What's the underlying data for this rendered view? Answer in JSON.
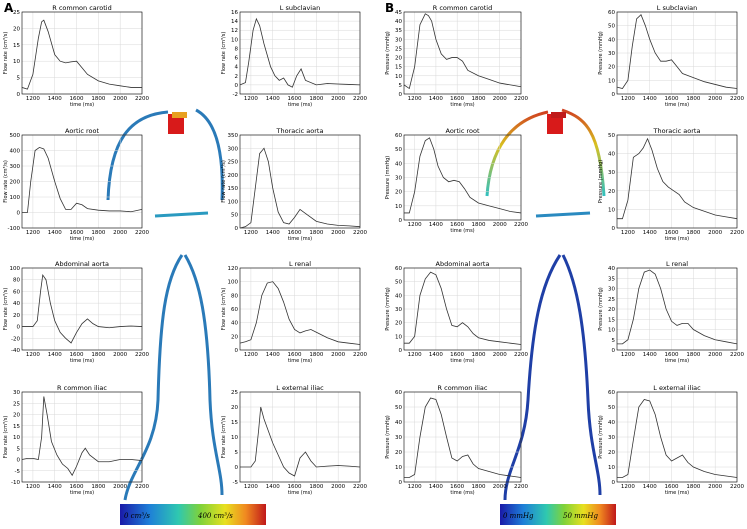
{
  "panels": {
    "A": {
      "letter": "A",
      "xlabel": "time (ms)",
      "ylabel": "Flow rate (cm³/s)",
      "colorbar": {
        "low": "0 cm³/s",
        "high": "400 cm³/s"
      }
    },
    "B": {
      "letter": "B",
      "xlabel": "time (ms)",
      "ylabel": "Pressure (mmHg)",
      "colorbar": {
        "low": "0 mmHg",
        "high": "50 mmHg"
      }
    }
  },
  "colors": {
    "line": "#333333",
    "grid": "#d8d8d8",
    "vessel_flow": "#2a7ab8",
    "vessel_pressure": "#1f3fa6"
  },
  "chart_data": [
    {
      "type": "line",
      "panel": "A",
      "title": "R common carotid",
      "ylabel": "Flow rate (cm³/s)",
      "xlabel": "time (ms)",
      "xlim": [
        1100,
        2200
      ],
      "ylim": [
        0,
        25
      ],
      "xticks": [
        1200,
        1400,
        1600,
        1800,
        2000,
        2200
      ],
      "yticks": [
        0,
        5,
        10,
        15,
        20,
        25
      ],
      "x": [
        1100,
        1150,
        1200,
        1250,
        1280,
        1300,
        1340,
        1400,
        1450,
        1500,
        1550,
        1600,
        1650,
        1700,
        1800,
        1900,
        2000,
        2100,
        2200
      ],
      "y": [
        2,
        1.5,
        6,
        17,
        22,
        22.5,
        19,
        12,
        10,
        9.5,
        9.8,
        10,
        8,
        6,
        4,
        3,
        2.5,
        2,
        2
      ]
    },
    {
      "type": "line",
      "panel": "A",
      "title": "L subclavian",
      "ylabel": "Flow rate (cm³/s)",
      "xlabel": "time (ms)",
      "xlim": [
        1100,
        2200
      ],
      "ylim": [
        -2,
        16
      ],
      "xticks": [
        1200,
        1400,
        1600,
        1800,
        2000,
        2200
      ],
      "yticks": [
        -2,
        0,
        2,
        4,
        6,
        8,
        10,
        12,
        14,
        16
      ],
      "x": [
        1100,
        1150,
        1180,
        1220,
        1250,
        1280,
        1320,
        1380,
        1420,
        1460,
        1500,
        1540,
        1580,
        1620,
        1660,
        1700,
        1800,
        1900,
        2000,
        2100,
        2200
      ],
      "y": [
        0,
        0.5,
        5,
        12,
        14.5,
        13,
        9,
        4,
        2,
        1,
        1.5,
        0,
        -0.5,
        2,
        3.5,
        1,
        0,
        0.3,
        0.2,
        0.1,
        0
      ]
    },
    {
      "type": "line",
      "panel": "A",
      "title": "Aortic root",
      "ylabel": "Flow rate (cm³/s)",
      "xlabel": "time (ms)",
      "xlim": [
        1100,
        2200
      ],
      "ylim": [
        -100,
        500
      ],
      "xticks": [
        1200,
        1400,
        1600,
        1800,
        2000,
        2200
      ],
      "yticks": [
        -100,
        0,
        100,
        200,
        300,
        400,
        500
      ],
      "x": [
        1100,
        1150,
        1180,
        1220,
        1260,
        1300,
        1340,
        1400,
        1450,
        1500,
        1550,
        1600,
        1650,
        1700,
        1800,
        1900,
        2000,
        2100,
        2200
      ],
      "y": [
        0,
        0,
        200,
        400,
        420,
        410,
        350,
        200,
        90,
        20,
        20,
        60,
        50,
        25,
        15,
        10,
        10,
        5,
        20
      ]
    },
    {
      "type": "line",
      "panel": "A",
      "title": "Thoracic aorta",
      "ylabel": "Flow rate (cm³/s)",
      "xlabel": "time (ms)",
      "xlim": [
        1100,
        2200
      ],
      "ylim": [
        0,
        350
      ],
      "xticks": [
        1200,
        1400,
        1600,
        1800,
        2000,
        2200
      ],
      "yticks": [
        0,
        50,
        100,
        150,
        200,
        250,
        300,
        350
      ],
      "x": [
        1100,
        1150,
        1200,
        1240,
        1280,
        1320,
        1360,
        1400,
        1450,
        1500,
        1550,
        1600,
        1650,
        1700,
        1800,
        1900,
        2000,
        2100,
        2200
      ],
      "y": [
        0,
        5,
        20,
        150,
        280,
        300,
        250,
        150,
        60,
        20,
        15,
        40,
        70,
        55,
        25,
        15,
        10,
        8,
        5
      ]
    },
    {
      "type": "line",
      "panel": "A",
      "title": "Abdominal aorta",
      "ylabel": "Flow rate (cm³/s)",
      "xlabel": "time (ms)",
      "xlim": [
        1100,
        2200
      ],
      "ylim": [
        -40,
        100
      ],
      "xticks": [
        1200,
        1400,
        1600,
        1800,
        2000,
        2200
      ],
      "yticks": [
        -40,
        -20,
        0,
        20,
        40,
        60,
        80,
        100
      ],
      "x": [
        1100,
        1150,
        1200,
        1240,
        1270,
        1290,
        1320,
        1360,
        1400,
        1450,
        1500,
        1550,
        1600,
        1650,
        1700,
        1750,
        1800,
        1900,
        2000,
        2100,
        2200
      ],
      "y": [
        0,
        0,
        0,
        10,
        60,
        88,
        80,
        40,
        10,
        -10,
        -20,
        -28,
        -10,
        5,
        13,
        5,
        0,
        -2,
        0,
        1,
        0
      ]
    },
    {
      "type": "line",
      "panel": "A",
      "title": "L renal",
      "ylabel": "Flow rate (cm³/s)",
      "xlabel": "time (ms)",
      "xlim": [
        1100,
        2200
      ],
      "ylim": [
        0,
        120
      ],
      "xticks": [
        1200,
        1400,
        1600,
        1800,
        2000,
        2200
      ],
      "yticks": [
        0,
        20,
        40,
        60,
        80,
        100,
        120
      ],
      "x": [
        1100,
        1150,
        1200,
        1250,
        1300,
        1350,
        1400,
        1450,
        1500,
        1550,
        1600,
        1650,
        1700,
        1750,
        1800,
        1900,
        2000,
        2100,
        2200
      ],
      "y": [
        10,
        12,
        15,
        40,
        80,
        98,
        100,
        90,
        70,
        45,
        30,
        25,
        28,
        30,
        26,
        18,
        12,
        10,
        8
      ]
    },
    {
      "type": "line",
      "panel": "A",
      "title": "R common iliac",
      "ylabel": "Flow rate (cm³/s)",
      "xlabel": "time (ms)",
      "xlim": [
        1100,
        2200
      ],
      "ylim": [
        -10,
        30
      ],
      "xticks": [
        1200,
        1400,
        1600,
        1800,
        2000,
        2200
      ],
      "yticks": [
        -10,
        -5,
        0,
        5,
        10,
        15,
        20,
        25,
        30
      ],
      "x": [
        1100,
        1150,
        1200,
        1250,
        1280,
        1300,
        1330,
        1370,
        1420,
        1470,
        1520,
        1560,
        1600,
        1650,
        1680,
        1720,
        1800,
        1900,
        2000,
        2100,
        2200
      ],
      "y": [
        0,
        0.5,
        0.5,
        0,
        10,
        28,
        20,
        8,
        2,
        -2,
        -4,
        -7,
        -3,
        3,
        5,
        2,
        -1,
        -1,
        0,
        0,
        -0.5
      ]
    },
    {
      "type": "line",
      "panel": "A",
      "title": "L external iliac",
      "ylabel": "Flow rate (cm³/s)",
      "xlabel": "time (ms)",
      "xlim": [
        1100,
        2200
      ],
      "ylim": [
        -5,
        25
      ],
      "xticks": [
        1200,
        1400,
        1600,
        1800,
        2000,
        2200
      ],
      "yticks": [
        -5,
        0,
        5,
        10,
        15,
        20,
        25
      ],
      "x": [
        1100,
        1150,
        1200,
        1240,
        1270,
        1290,
        1320,
        1360,
        1400,
        1450,
        1500,
        1550,
        1600,
        1650,
        1700,
        1750,
        1800,
        1900,
        2000,
        2100,
        2200
      ],
      "y": [
        0,
        0,
        0,
        2,
        12,
        20,
        16,
        12,
        8,
        4,
        0,
        -2,
        -3,
        3,
        5,
        2,
        0,
        0.3,
        0.5,
        0.3,
        0
      ]
    },
    {
      "type": "line",
      "panel": "B",
      "title": "R common carotid",
      "ylabel": "Pressure (mmHg)",
      "xlabel": "time (ms)",
      "xlim": [
        1100,
        2200
      ],
      "ylim": [
        0,
        45
      ],
      "xticks": [
        1200,
        1400,
        1600,
        1800,
        2000,
        2200
      ],
      "yticks": [
        0,
        5,
        10,
        15,
        20,
        25,
        30,
        35,
        40,
        45
      ],
      "x": [
        1100,
        1150,
        1200,
        1250,
        1300,
        1330,
        1360,
        1400,
        1450,
        1500,
        1550,
        1600,
        1650,
        1700,
        1800,
        1900,
        2000,
        2100,
        2200
      ],
      "y": [
        5,
        3,
        15,
        38,
        44,
        43,
        40,
        30,
        22,
        19,
        20,
        20,
        18,
        13,
        10,
        8,
        6,
        5,
        4
      ]
    },
    {
      "type": "line",
      "panel": "B",
      "title": "L subclavian",
      "ylabel": "Pressure (mmHg)",
      "xlabel": "time (ms)",
      "xlim": [
        1100,
        2200
      ],
      "ylim": [
        0,
        60
      ],
      "xticks": [
        1200,
        1400,
        1600,
        1800,
        2000,
        2200
      ],
      "yticks": [
        0,
        10,
        20,
        30,
        40,
        50,
        60
      ],
      "x": [
        1100,
        1150,
        1200,
        1240,
        1280,
        1320,
        1360,
        1400,
        1450,
        1500,
        1550,
        1600,
        1650,
        1700,
        1800,
        1900,
        2000,
        2100,
        2200
      ],
      "y": [
        5,
        4,
        10,
        35,
        55,
        58,
        50,
        40,
        30,
        24,
        24,
        25,
        20,
        15,
        12,
        9,
        7,
        5,
        4
      ]
    },
    {
      "type": "line",
      "panel": "B",
      "title": "Aortic root",
      "ylabel": "Pressure (mmHg)",
      "xlabel": "time (ms)",
      "xlim": [
        1100,
        2200
      ],
      "ylim": [
        0,
        60
      ],
      "xticks": [
        1200,
        1400,
        1600,
        1800,
        2000,
        2200
      ],
      "yticks": [
        0,
        10,
        20,
        30,
        40,
        50,
        60
      ],
      "x": [
        1100,
        1150,
        1200,
        1250,
        1300,
        1340,
        1380,
        1420,
        1470,
        1520,
        1570,
        1620,
        1670,
        1720,
        1800,
        1900,
        2000,
        2100,
        2200
      ],
      "y": [
        5,
        5,
        20,
        45,
        56,
        58,
        50,
        38,
        30,
        27,
        28,
        27,
        22,
        16,
        12,
        10,
        8,
        6,
        5
      ]
    },
    {
      "type": "line",
      "panel": "B",
      "title": "Thoracic aorta",
      "ylabel": "Pressure (mmHg)",
      "xlabel": "time (ms)",
      "xlim": [
        1100,
        2200
      ],
      "ylim": [
        0,
        50
      ],
      "xticks": [
        1200,
        1400,
        1600,
        1800,
        2000,
        2200
      ],
      "yticks": [
        0,
        10,
        20,
        30,
        40,
        50
      ],
      "x": [
        1100,
        1150,
        1200,
        1250,
        1300,
        1340,
        1380,
        1420,
        1470,
        1520,
        1570,
        1620,
        1670,
        1720,
        1800,
        1900,
        2000,
        2100,
        2200
      ],
      "y": [
        5,
        5,
        15,
        38,
        40,
        43,
        48,
        42,
        32,
        25,
        22,
        20,
        18,
        14,
        11,
        9,
        7,
        6,
        5
      ]
    },
    {
      "type": "line",
      "panel": "B",
      "title": "Abdominal aorta",
      "ylabel": "Pressure (mmHg)",
      "xlabel": "time (ms)",
      "xlim": [
        1100,
        2200
      ],
      "ylim": [
        0,
        60
      ],
      "xticks": [
        1200,
        1400,
        1600,
        1800,
        2000,
        2200
      ],
      "yticks": [
        0,
        10,
        20,
        30,
        40,
        50,
        60
      ],
      "x": [
        1100,
        1150,
        1200,
        1250,
        1300,
        1350,
        1400,
        1450,
        1500,
        1550,
        1600,
        1650,
        1700,
        1750,
        1800,
        1900,
        2000,
        2100,
        2200
      ],
      "y": [
        5,
        5,
        10,
        40,
        52,
        57,
        55,
        45,
        30,
        18,
        17,
        20,
        17,
        12,
        9,
        7,
        6,
        5,
        4
      ]
    },
    {
      "type": "line",
      "panel": "B",
      "title": "L renal",
      "ylabel": "Pressure (mmHg)",
      "xlabel": "time (ms)",
      "xlim": [
        1100,
        2200
      ],
      "ylim": [
        0,
        40
      ],
      "xticks": [
        1200,
        1400,
        1600,
        1800,
        2000,
        2200
      ],
      "yticks": [
        0,
        5,
        10,
        15,
        20,
        25,
        30,
        35,
        40
      ],
      "x": [
        1100,
        1150,
        1200,
        1250,
        1300,
        1350,
        1400,
        1450,
        1500,
        1550,
        1600,
        1650,
        1700,
        1750,
        1800,
        1900,
        2000,
        2100,
        2200
      ],
      "y": [
        3,
        3,
        5,
        15,
        30,
        38,
        39,
        37,
        30,
        20,
        14,
        12,
        13,
        13,
        10,
        7,
        5,
        4,
        3
      ]
    },
    {
      "type": "line",
      "panel": "B",
      "title": "R common iliac",
      "ylabel": "Pressure (mmHg)",
      "xlabel": "time (ms)",
      "xlim": [
        1100,
        2200
      ],
      "ylim": [
        0,
        60
      ],
      "xticks": [
        1200,
        1400,
        1600,
        1800,
        2000,
        2200
      ],
      "yticks": [
        0,
        10,
        20,
        30,
        40,
        50,
        60
      ],
      "x": [
        1100,
        1150,
        1200,
        1250,
        1300,
        1350,
        1400,
        1450,
        1500,
        1550,
        1600,
        1650,
        1700,
        1750,
        1800,
        1900,
        2000,
        2100,
        2200
      ],
      "y": [
        3,
        3,
        5,
        30,
        50,
        56,
        55,
        45,
        30,
        16,
        14,
        17,
        18,
        12,
        9,
        7,
        5,
        4,
        3
      ]
    },
    {
      "type": "line",
      "panel": "B",
      "title": "L external iliac",
      "ylabel": "Pressure (mmHg)",
      "xlabel": "time (ms)",
      "xlim": [
        1100,
        2200
      ],
      "ylim": [
        0,
        60
      ],
      "xticks": [
        1200,
        1400,
        1600,
        1800,
        2000,
        2200
      ],
      "yticks": [
        0,
        10,
        20,
        30,
        40,
        50,
        60
      ],
      "x": [
        1100,
        1150,
        1200,
        1250,
        1300,
        1350,
        1400,
        1450,
        1500,
        1550,
        1600,
        1650,
        1700,
        1750,
        1800,
        1900,
        2000,
        2100,
        2200
      ],
      "y": [
        3,
        3,
        5,
        28,
        50,
        55,
        54,
        45,
        30,
        18,
        14,
        16,
        18,
        13,
        10,
        7,
        5,
        4,
        3
      ]
    }
  ]
}
